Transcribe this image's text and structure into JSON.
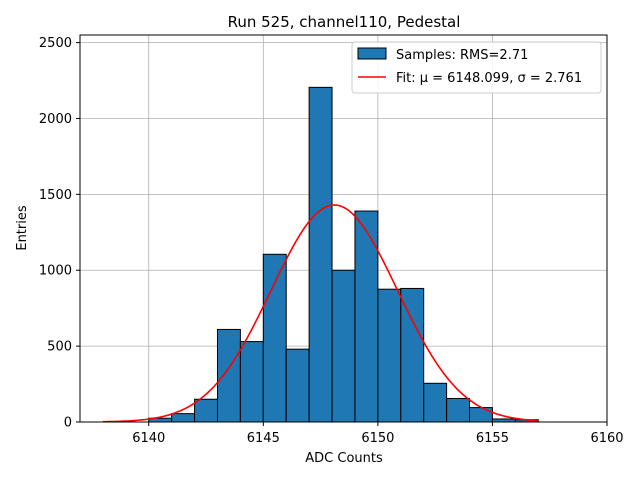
{
  "chart_data": {
    "type": "bar",
    "title": "Run 525, channel110, Pedestal",
    "xlabel": "ADC Counts",
    "ylabel": "Entries",
    "xlim": [
      6137,
      6160
    ],
    "ylim": [
      0,
      2550
    ],
    "xticks": [
      6140,
      6145,
      6150,
      6155,
      6160
    ],
    "yticks": [
      0,
      500,
      1000,
      1500,
      2000,
      2500
    ],
    "grid": true,
    "legend_position": "top-right",
    "histogram": {
      "name": "Samples: RMS=2.71",
      "color": "#1f77b4",
      "bin_edges": [
        6140,
        6141,
        6142,
        6143,
        6144,
        6145,
        6146,
        6147,
        6148,
        6149,
        6150,
        6151,
        6152,
        6153,
        6154,
        6155,
        6156,
        6157
      ],
      "counts": [
        25,
        55,
        150,
        610,
        530,
        1105,
        480,
        2205,
        1000,
        1390,
        875,
        880,
        255,
        155,
        95,
        20,
        15
      ]
    },
    "fit": {
      "name": "Fit: μ = 6148.099, σ = 2.761",
      "color": "#ff0000",
      "mu": 6148.099,
      "sigma": 2.761,
      "amplitude": 1430,
      "x_range": [
        6138,
        6157
      ]
    }
  }
}
